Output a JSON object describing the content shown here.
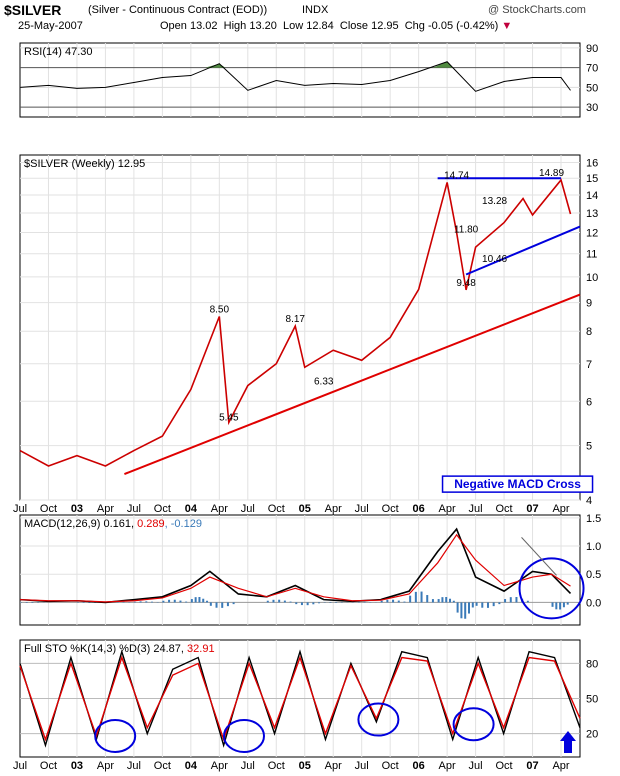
{
  "header": {
    "symbol": "$SILVER",
    "description": "(Silver - Continuous Contract (EOD))",
    "exchange": "INDX",
    "watermark": "@ StockCharts.com",
    "date": "25-May-2007",
    "open_label": "Open",
    "open": "13.02",
    "high_label": "High",
    "high": "13.20",
    "low_label": "Low",
    "low": "12.84",
    "close_label": "Close",
    "close": "12.95",
    "chg_label": "Chg",
    "chg": "-0.05 (-0.42%)"
  },
  "colors": {
    "price": "#cc0000",
    "trendline_red": "#e00000",
    "trendline_blue": "#0000dd",
    "macd_line": "#000000",
    "signal_line": "#e00000",
    "histogram": "#3a7ab8",
    "circle": "#0000dd",
    "rsi_fill": "#4f8a3f",
    "annotation_box": "#0000dd"
  },
  "chart_data": [
    {
      "type": "line",
      "panel": "rsi",
      "label": "RSI(14) 47.30",
      "y_ticks": [
        30,
        50,
        70,
        90
      ],
      "reference_lines": [
        30,
        70
      ],
      "ylim": [
        20,
        95
      ],
      "x": [
        "2002-07",
        "2002-10",
        "2003-01",
        "2003-04",
        "2003-07",
        "2003-10",
        "2004-01",
        "2004-04",
        "2004-07",
        "2004-10",
        "2005-01",
        "2005-04",
        "2005-07",
        "2005-10",
        "2006-01",
        "2006-04",
        "2006-07",
        "2006-10",
        "2007-01",
        "2007-04",
        "2007-05"
      ],
      "values": [
        50,
        52,
        49,
        50,
        55,
        60,
        62,
        74,
        47,
        57,
        52,
        54,
        53,
        57,
        66,
        76,
        46,
        56,
        60,
        60,
        47
      ]
    },
    {
      "type": "line",
      "panel": "price",
      "title": "$SILVER (Weekly) 12.95",
      "scale": "log",
      "ylim": [
        4,
        16.5
      ],
      "y_ticks": [
        4,
        5,
        6,
        7,
        8,
        9,
        10,
        11,
        12,
        13,
        14,
        15,
        16
      ],
      "x": [
        "2002-07",
        "2002-10",
        "2003-01",
        "2003-04",
        "2003-07",
        "2003-10",
        "2004-01",
        "2004-04",
        "2004-05",
        "2004-07",
        "2004-10",
        "2004-12",
        "2005-01",
        "2005-04",
        "2005-07",
        "2005-10",
        "2006-01",
        "2006-04",
        "2006-05",
        "2006-06",
        "2006-07",
        "2006-10",
        "2006-12",
        "2007-01",
        "2007-04",
        "2007-05"
      ],
      "values": [
        4.9,
        4.6,
        4.8,
        4.6,
        4.9,
        5.2,
        6.3,
        8.5,
        5.5,
        6.4,
        7.0,
        8.17,
        6.9,
        7.4,
        7.1,
        7.8,
        9.5,
        14.74,
        12.0,
        9.48,
        11.3,
        12.5,
        13.8,
        12.9,
        14.89,
        12.95
      ],
      "annotations": [
        {
          "text": "8.50",
          "x": "2004-04",
          "y": 8.5
        },
        {
          "text": "8.17",
          "x": "2004-12",
          "y": 8.17
        },
        {
          "text": "6.33",
          "x": "2005-03",
          "y": 6.33
        },
        {
          "text": "5.45",
          "x": "2004-05",
          "y": 5.45
        },
        {
          "text": "14.74",
          "x": "2006-05",
          "y": 14.74
        },
        {
          "text": "14.89",
          "x": "2007-03",
          "y": 14.89
        },
        {
          "text": "13.28",
          "x": "2006-09",
          "y": 13.28
        },
        {
          "text": "11.80",
          "x": "2006-06",
          "y": 11.8
        },
        {
          "text": "10.46",
          "x": "2006-09",
          "y": 10.46
        },
        {
          "text": "9.48",
          "x": "2006-06",
          "y": 9.48
        },
        {
          "text": "Negative MACD Cross",
          "x": "2007-01",
          "y": 4.2
        }
      ],
      "trendlines": [
        {
          "color": "red",
          "from": {
            "x": "2003-06",
            "y": 4.45
          },
          "to": {
            "x": "2007-06",
            "y": 9.3
          }
        },
        {
          "color": "blue",
          "from": {
            "x": "2006-06",
            "y": 10.1
          },
          "to": {
            "x": "2007-06",
            "y": 12.3
          }
        },
        {
          "color": "blue",
          "from": {
            "x": "2006-03",
            "y": 15.0
          },
          "to": {
            "x": "2007-04",
            "y": 15.0
          }
        }
      ]
    },
    {
      "type": "line",
      "panel": "macd",
      "label": "MACD(12,26,9)",
      "macd_value": "0.161",
      "signal_value": "0.289",
      "hist_value": "-0.129",
      "y_ticks": [
        "0.0",
        "0.5",
        "1.0",
        "1.5"
      ],
      "ylim": [
        -0.4,
        1.55
      ],
      "x": [
        "2002-07",
        "2002-10",
        "2003-01",
        "2003-04",
        "2003-07",
        "2003-10",
        "2004-01",
        "2004-03",
        "2004-06",
        "2004-09",
        "2004-12",
        "2005-03",
        "2005-06",
        "2005-09",
        "2005-12",
        "2006-03",
        "2006-05",
        "2006-07",
        "2006-10",
        "2007-01",
        "2007-03",
        "2007-05"
      ],
      "series": [
        {
          "name": "MACD",
          "values": [
            0.05,
            0.02,
            0.03,
            0.0,
            0.05,
            0.1,
            0.3,
            0.55,
            0.15,
            0.1,
            0.3,
            0.05,
            0.02,
            0.05,
            0.2,
            0.9,
            1.3,
            0.45,
            0.2,
            0.55,
            0.5,
            0.16
          ]
        },
        {
          "name": "Signal",
          "values": [
            0.05,
            0.03,
            0.03,
            0.01,
            0.03,
            0.08,
            0.25,
            0.45,
            0.25,
            0.1,
            0.25,
            0.1,
            0.03,
            0.04,
            0.15,
            0.7,
            1.2,
            0.75,
            0.3,
            0.45,
            0.5,
            0.29
          ]
        }
      ]
    },
    {
      "type": "line",
      "panel": "stochastic",
      "label": "Full STO %K(14,3) %D(3)",
      "k_value": "24.87",
      "d_value": "32.91",
      "y_ticks": [
        20,
        50,
        80
      ],
      "ylim": [
        0,
        100
      ],
      "series": [
        {
          "name": "%K",
          "values": [
            80,
            10,
            85,
            15,
            90,
            20,
            75,
            85,
            10,
            85,
            20,
            90,
            15,
            80,
            30,
            90,
            85,
            15,
            85,
            20,
            90,
            85,
            25
          ]
        },
        {
          "name": "%D",
          "values": [
            78,
            15,
            80,
            18,
            85,
            25,
            70,
            80,
            15,
            80,
            25,
            85,
            20,
            78,
            33,
            85,
            82,
            20,
            80,
            25,
            85,
            82,
            33
          ]
        }
      ]
    }
  ],
  "x_axis_labels": [
    "Jul",
    "Oct",
    "03",
    "Apr",
    "Jul",
    "Oct",
    "04",
    "Apr",
    "Jul",
    "Oct",
    "05",
    "Apr",
    "Jul",
    "Oct",
    "06",
    "Apr",
    "Jul",
    "Oct",
    "07",
    "Apr"
  ]
}
